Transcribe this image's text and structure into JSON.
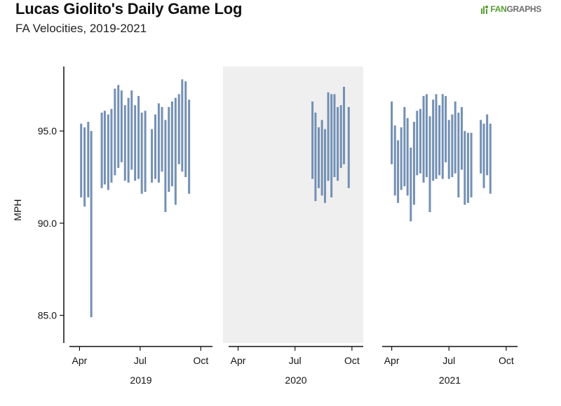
{
  "header": {
    "title": "Lucas Giolito's Daily Game Log",
    "subtitle": "FA Velocities, 2019-2021"
  },
  "logo": {
    "fan": "FAN",
    "graphs": "GRAPHS"
  },
  "colors": {
    "bar": "#7390b4",
    "shade": "#efefef",
    "axis": "#111111",
    "logo_green": "#55a02f"
  },
  "chart_data": {
    "type": "range_bar",
    "title": "Lucas Giolito's Daily Game Log",
    "subtitle": "FA Velocities, 2019-2021",
    "ylabel": "MPH",
    "ylim": [
      83.5,
      98.5
    ],
    "yticks": [
      85.0,
      90.0,
      95.0
    ],
    "ytick_labels": [
      "85.0",
      "90.0",
      "95.0"
    ],
    "month_ticks": [
      {
        "label": "Apr",
        "month": 4
      },
      {
        "label": "Jul",
        "month": 7
      },
      {
        "label": "Oct",
        "month": 10
      }
    ],
    "xlim_months": [
      3.5,
      10.3
    ],
    "panels": [
      {
        "year": "2019",
        "shaded": false,
        "games": [
          {
            "month": 4.08,
            "low": 91.4,
            "high": 95.4
          },
          {
            "month": 4.25,
            "low": 90.9,
            "high": 95.2
          },
          {
            "month": 4.43,
            "low": 91.4,
            "high": 95.5
          },
          {
            "month": 4.58,
            "low": 84.9,
            "high": 95.0
          },
          {
            "month": 5.1,
            "low": 91.9,
            "high": 96.0
          },
          {
            "month": 5.25,
            "low": 92.1,
            "high": 96.1
          },
          {
            "month": 5.42,
            "low": 91.8,
            "high": 95.9
          },
          {
            "month": 5.58,
            "low": 92.2,
            "high": 96.2
          },
          {
            "month": 5.75,
            "low": 92.6,
            "high": 97.3
          },
          {
            "month": 5.92,
            "low": 93.0,
            "high": 97.5
          },
          {
            "month": 6.08,
            "low": 93.3,
            "high": 97.2
          },
          {
            "month": 6.25,
            "low": 92.3,
            "high": 96.4
          },
          {
            "month": 6.42,
            "low": 92.2,
            "high": 96.8
          },
          {
            "month": 6.58,
            "low": 92.9,
            "high": 97.2
          },
          {
            "month": 6.75,
            "low": 92.3,
            "high": 96.4
          },
          {
            "month": 6.92,
            "low": 92.4,
            "high": 96.9
          },
          {
            "month": 7.08,
            "low": 91.6,
            "high": 96.0
          },
          {
            "month": 7.25,
            "low": 91.7,
            "high": 96.1
          },
          {
            "month": 7.58,
            "low": 92.2,
            "high": 95.1
          },
          {
            "month": 7.75,
            "low": 92.4,
            "high": 95.9
          },
          {
            "month": 7.92,
            "low": 92.2,
            "high": 96.5
          },
          {
            "month": 8.08,
            "low": 92.8,
            "high": 96.3
          },
          {
            "month": 8.25,
            "low": 90.6,
            "high": 95.6
          },
          {
            "month": 8.42,
            "low": 91.7,
            "high": 96.3
          },
          {
            "month": 8.58,
            "low": 92.0,
            "high": 96.6
          },
          {
            "month": 8.75,
            "low": 91.0,
            "high": 96.8
          },
          {
            "month": 8.92,
            "low": 93.2,
            "high": 97.0
          },
          {
            "month": 9.08,
            "low": 92.8,
            "high": 97.8
          },
          {
            "month": 9.25,
            "low": 92.5,
            "high": 97.7
          },
          {
            "month": 9.42,
            "low": 91.6,
            "high": 96.7
          }
        ]
      },
      {
        "year": "2020",
        "shaded": true,
        "games": [
          {
            "month": 7.92,
            "low": 92.4,
            "high": 96.6
          },
          {
            "month": 8.08,
            "low": 91.2,
            "high": 96.0
          },
          {
            "month": 8.25,
            "low": 91.9,
            "high": 95.2
          },
          {
            "month": 8.42,
            "low": 91.5,
            "high": 95.6
          },
          {
            "month": 8.58,
            "low": 91.1,
            "high": 95.1
          },
          {
            "month": 8.75,
            "low": 92.3,
            "high": 97.1
          },
          {
            "month": 8.92,
            "low": 91.4,
            "high": 97.0
          },
          {
            "month": 9.08,
            "low": 92.5,
            "high": 97.0
          },
          {
            "month": 9.25,
            "low": 92.3,
            "high": 96.3
          },
          {
            "month": 9.42,
            "low": 93.0,
            "high": 96.4
          },
          {
            "month": 9.58,
            "low": 93.2,
            "high": 97.4
          },
          {
            "month": 9.83,
            "low": 91.9,
            "high": 96.3
          }
        ]
      },
      {
        "year": "2021",
        "shaded": false,
        "games": [
          {
            "month": 4.0,
            "low": 93.2,
            "high": 96.6
          },
          {
            "month": 4.17,
            "low": 91.5,
            "high": 95.3
          },
          {
            "month": 4.33,
            "low": 91.1,
            "high": 94.5
          },
          {
            "month": 4.5,
            "low": 91.8,
            "high": 95.2
          },
          {
            "month": 4.67,
            "low": 92.0,
            "high": 96.3
          },
          {
            "month": 4.83,
            "low": 91.5,
            "high": 95.7
          },
          {
            "month": 5.0,
            "low": 90.1,
            "high": 94.1
          },
          {
            "month": 5.17,
            "low": 91.0,
            "high": 95.5
          },
          {
            "month": 5.33,
            "low": 92.6,
            "high": 96.1
          },
          {
            "month": 5.5,
            "low": 92.7,
            "high": 96.2
          },
          {
            "month": 5.67,
            "low": 92.2,
            "high": 96.9
          },
          {
            "month": 5.83,
            "low": 92.5,
            "high": 97.0
          },
          {
            "month": 6.0,
            "low": 90.6,
            "high": 95.8
          },
          {
            "month": 6.17,
            "low": 92.3,
            "high": 96.7
          },
          {
            "month": 6.33,
            "low": 92.4,
            "high": 97.0
          },
          {
            "month": 6.5,
            "low": 92.6,
            "high": 96.4
          },
          {
            "month": 6.67,
            "low": 92.4,
            "high": 97.0
          },
          {
            "month": 6.83,
            "low": 93.3,
            "high": 96.9
          },
          {
            "month": 7.0,
            "low": 92.4,
            "high": 95.6
          },
          {
            "month": 7.17,
            "low": 92.5,
            "high": 95.9
          },
          {
            "month": 7.33,
            "low": 92.7,
            "high": 96.6
          },
          {
            "month": 7.5,
            "low": 91.4,
            "high": 96.0
          },
          {
            "month": 7.67,
            "low": 92.9,
            "high": 96.3
          },
          {
            "month": 7.83,
            "low": 91.0,
            "high": 95.0
          },
          {
            "month": 8.0,
            "low": 91.1,
            "high": 94.9
          },
          {
            "month": 8.17,
            "low": 91.4,
            "high": 94.9
          },
          {
            "month": 8.67,
            "low": 92.7,
            "high": 95.6
          },
          {
            "month": 8.83,
            "low": 91.9,
            "high": 95.4
          },
          {
            "month": 9.0,
            "low": 92.6,
            "high": 95.9
          },
          {
            "month": 9.17,
            "low": 91.6,
            "high": 95.4
          }
        ]
      }
    ]
  }
}
